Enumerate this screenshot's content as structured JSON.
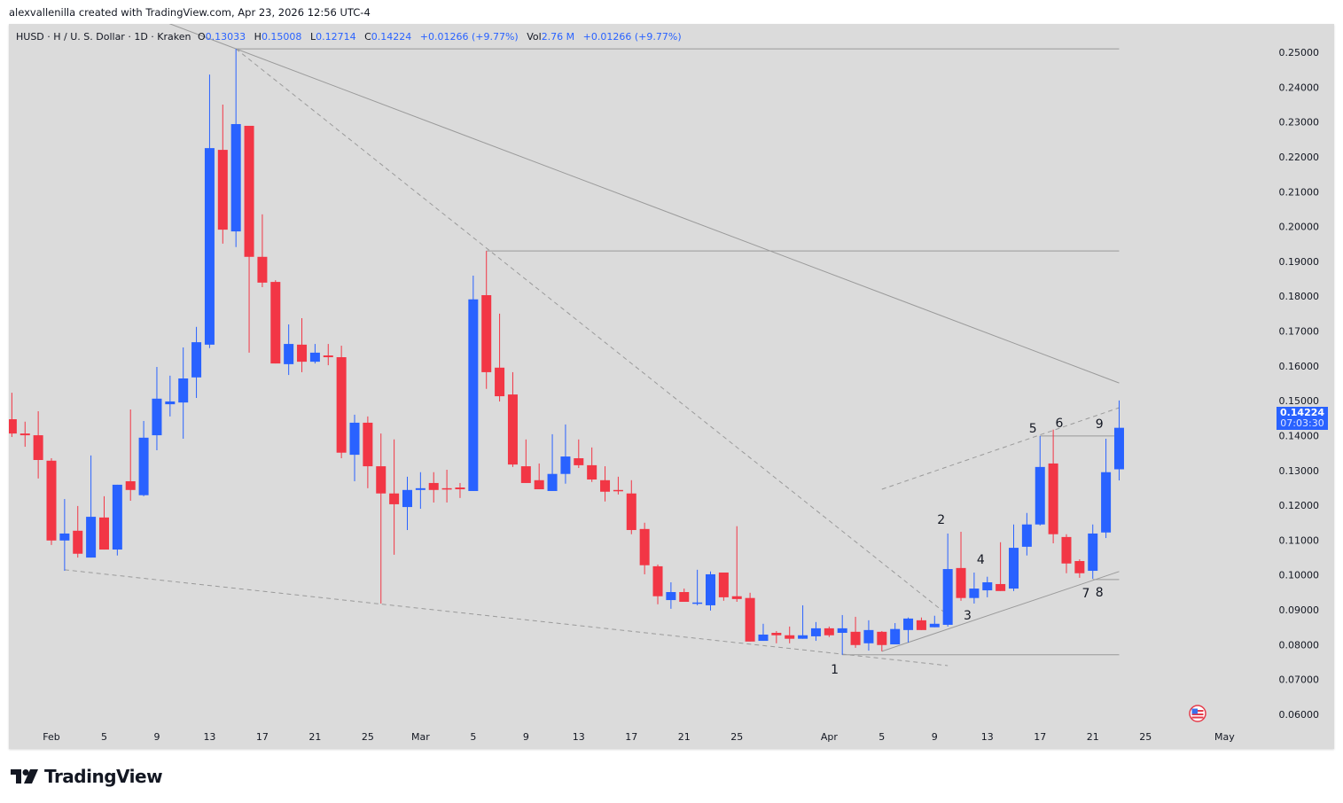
{
  "credit": "alexvallenilla created with TradingView.com, Apr 23, 2026 12:56 UTC-4",
  "legend": {
    "symbol": "HUSD · H / U. S. Dollar · 1D · Kraken",
    "o_label": "O",
    "o": "0.13033",
    "h_label": "H",
    "h": "0.15008",
    "l_label": "L",
    "l": "0.12714",
    "c_label": "C",
    "c": "0.14224",
    "change": "+0.01266 (+9.77%)",
    "vol_label": "Vol",
    "vol": "2.76 M",
    "vol_change": "+0.01266 (+9.77%)"
  },
  "last_price": {
    "price": "0.14224",
    "countdown": "07:03:30"
  },
  "logo": {
    "text": "TradingView"
  },
  "icons": {
    "flag": "us-flag-icon",
    "logo": "tradingview-logo-icon"
  },
  "colors": {
    "up": "#2962ff",
    "down": "#f23645",
    "background": "#dbdbdb",
    "drawing": "#9a9a9a",
    "accent": "#2962ff"
  },
  "chart_data": {
    "type": "candlestick",
    "title": "",
    "symbol": "HUSD",
    "interval": "1D",
    "exchange": "Kraken",
    "xlabel": "",
    "ylabel": "",
    "ylim": [
      0.055,
      0.2585
    ],
    "xlim": [
      "2026-01-28",
      "2026-05-05"
    ],
    "grid": false,
    "price_ticks": [
      "0.25000",
      "0.24000",
      "0.23000",
      "0.22000",
      "0.21000",
      "0.20000",
      "0.19000",
      "0.18000",
      "0.17000",
      "0.16000",
      "0.15000",
      "0.14000",
      "0.13000",
      "0.12000",
      "0.11000",
      "0.10000",
      "0.09000",
      "0.08000",
      "0.07000",
      "0.06000"
    ],
    "x_ticks": [
      {
        "date": "2026-02-01",
        "label": "Feb"
      },
      {
        "date": "2026-02-05",
        "label": "5"
      },
      {
        "date": "2026-02-09",
        "label": "9"
      },
      {
        "date": "2026-02-13",
        "label": "13"
      },
      {
        "date": "2026-02-17",
        "label": "17"
      },
      {
        "date": "2026-02-21",
        "label": "21"
      },
      {
        "date": "2026-02-25",
        "label": "25"
      },
      {
        "date": "2026-03-01",
        "label": "Mar"
      },
      {
        "date": "2026-03-05",
        "label": "5"
      },
      {
        "date": "2026-03-09",
        "label": "9"
      },
      {
        "date": "2026-03-13",
        "label": "13"
      },
      {
        "date": "2026-03-17",
        "label": "17"
      },
      {
        "date": "2026-03-21",
        "label": "21"
      },
      {
        "date": "2026-03-25",
        "label": "25"
      },
      {
        "date": "2026-04-01",
        "label": "Apr"
      },
      {
        "date": "2026-04-05",
        "label": "5"
      },
      {
        "date": "2026-04-09",
        "label": "9"
      },
      {
        "date": "2026-04-13",
        "label": "13"
      },
      {
        "date": "2026-04-17",
        "label": "17"
      },
      {
        "date": "2026-04-21",
        "label": "21"
      },
      {
        "date": "2026-04-25",
        "label": "25"
      },
      {
        "date": "2026-05-01",
        "label": "May"
      }
    ],
    "columns": [
      "date",
      "open",
      "high",
      "low",
      "close"
    ],
    "candles": [
      [
        "2026-01-29",
        0.1447,
        0.1523,
        0.1396,
        0.1406
      ],
      [
        "2026-01-30",
        0.1406,
        0.144,
        0.1368,
        0.1401
      ],
      [
        "2026-01-31",
        0.1401,
        0.147,
        0.1277,
        0.133
      ],
      [
        "2026-02-01",
        0.1328,
        0.1335,
        0.1086,
        0.1099
      ],
      [
        "2026-02-02",
        0.1099,
        0.1218,
        0.1012,
        0.1119
      ],
      [
        "2026-02-03",
        0.1127,
        0.1198,
        0.105,
        0.1061
      ],
      [
        "2026-02-04",
        0.105,
        0.1343,
        0.105,
        0.1167
      ],
      [
        "2026-02-05",
        0.1165,
        0.1226,
        0.1073,
        0.1073
      ],
      [
        "2026-02-06",
        0.1073,
        0.1259,
        0.1056,
        0.1259
      ],
      [
        "2026-02-07",
        0.1269,
        0.1475,
        0.1213,
        0.1244
      ],
      [
        "2026-02-08",
        0.1229,
        0.1442,
        0.1226,
        0.1394
      ],
      [
        "2026-02-09",
        0.1401,
        0.1597,
        0.1358,
        0.1506
      ],
      [
        "2026-02-10",
        0.149,
        0.1572,
        0.1455,
        0.1498
      ],
      [
        "2026-02-11",
        0.1495,
        0.1653,
        0.1391,
        0.1564
      ],
      [
        "2026-02-12",
        0.1567,
        0.1712,
        0.1508,
        0.1668
      ],
      [
        "2026-02-13",
        0.1661,
        0.2436,
        0.1651,
        0.2225
      ],
      [
        "2026-02-14",
        0.222,
        0.235,
        0.1951,
        0.1991
      ],
      [
        "2026-02-15",
        0.1986,
        0.251,
        0.1941,
        0.2294
      ],
      [
        "2026-02-16",
        0.2289,
        0.2289,
        0.1638,
        0.1913
      ],
      [
        "2026-02-17",
        0.1913,
        0.2035,
        0.1826,
        0.1839
      ],
      [
        "2026-02-18",
        0.1841,
        0.1846,
        0.1607,
        0.1607
      ],
      [
        "2026-02-19",
        0.1605,
        0.1719,
        0.1574,
        0.1663
      ],
      [
        "2026-02-20",
        0.1661,
        0.1737,
        0.1582,
        0.1612
      ],
      [
        "2026-02-21",
        0.1612,
        0.1663,
        0.1607,
        0.1638
      ],
      [
        "2026-02-22",
        0.163,
        0.1663,
        0.1602,
        0.1625
      ],
      [
        "2026-02-23",
        0.1625,
        0.1658,
        0.1335,
        0.1351
      ],
      [
        "2026-02-24",
        0.1345,
        0.146,
        0.1269,
        0.1437
      ],
      [
        "2026-02-25",
        0.1437,
        0.1455,
        0.1249,
        0.1312
      ],
      [
        "2026-02-26",
        0.1312,
        0.1406,
        0.0918,
        0.1234
      ],
      [
        "2026-02-27",
        0.1234,
        0.1389,
        0.1058,
        0.1203
      ],
      [
        "2026-02-28",
        0.1195,
        0.1282,
        0.1129,
        0.1244
      ],
      [
        "2026-03-01",
        0.1244,
        0.1295,
        0.119,
        0.1249
      ],
      [
        "2026-03-02",
        0.1264,
        0.1295,
        0.1208,
        0.1244
      ],
      [
        "2026-03-03",
        0.1249,
        0.1302,
        0.1208,
        0.1246
      ],
      [
        "2026-03-04",
        0.1251,
        0.1264,
        0.1221,
        0.1246
      ],
      [
        "2026-03-05",
        0.1241,
        0.1859,
        0.1241,
        0.1791
      ],
      [
        "2026-03-06",
        0.1803,
        0.193,
        0.1534,
        0.1582
      ],
      [
        "2026-03-07",
        0.1595,
        0.175,
        0.1498,
        0.1513
      ],
      [
        "2026-03-08",
        0.1518,
        0.1582,
        0.131,
        0.1317
      ],
      [
        "2026-03-09",
        0.1312,
        0.1389,
        0.1264,
        0.1264
      ],
      [
        "2026-03-10",
        0.1272,
        0.132,
        0.1246,
        0.1246
      ],
      [
        "2026-03-11",
        0.1241,
        0.1404,
        0.1241,
        0.129
      ],
      [
        "2026-03-12",
        0.129,
        0.1432,
        0.1262,
        0.134
      ],
      [
        "2026-03-13",
        0.1335,
        0.1389,
        0.1307,
        0.1315
      ],
      [
        "2026-03-14",
        0.1315,
        0.1366,
        0.1267,
        0.1274
      ],
      [
        "2026-03-15",
        0.1272,
        0.1312,
        0.1211,
        0.1239
      ],
      [
        "2026-03-16",
        0.1244,
        0.1282,
        0.1231,
        0.1241
      ],
      [
        "2026-03-17",
        0.1234,
        0.1272,
        0.1117,
        0.1129
      ],
      [
        "2026-03-18",
        0.1132,
        0.115,
        0.1002,
        0.1028
      ],
      [
        "2026-03-19",
        0.1025,
        0.103,
        0.0916,
        0.0939
      ],
      [
        "2026-03-20",
        0.0928,
        0.0979,
        0.0903,
        0.0951
      ],
      [
        "2026-03-21",
        0.0951,
        0.0961,
        0.0923,
        0.0923
      ],
      [
        "2026-03-22",
        0.0918,
        0.1015,
        0.0913,
        0.0921
      ],
      [
        "2026-03-23",
        0.0913,
        0.101,
        0.0898,
        0.1002
      ],
      [
        "2026-03-24",
        0.1007,
        0.1007,
        0.0926,
        0.0936
      ],
      [
        "2026-03-25",
        0.0939,
        0.114,
        0.0923,
        0.0931
      ],
      [
        "2026-03-26",
        0.0934,
        0.0949,
        0.0809,
        0.0809
      ],
      [
        "2026-03-27",
        0.0811,
        0.086,
        0.0811,
        0.0829
      ],
      [
        "2026-03-28",
        0.0834,
        0.0839,
        0.0804,
        0.0827
      ],
      [
        "2026-03-29",
        0.0827,
        0.0852,
        0.0804,
        0.0817
      ],
      [
        "2026-03-30",
        0.0817,
        0.0913,
        0.0817,
        0.0827
      ],
      [
        "2026-03-31",
        0.0824,
        0.0865,
        0.0811,
        0.0847
      ],
      [
        "2026-04-01",
        0.0847,
        0.0852,
        0.0822,
        0.0827
      ],
      [
        "2026-04-02",
        0.0834,
        0.0885,
        0.0771,
        0.0847
      ],
      [
        "2026-04-03",
        0.0837,
        0.088,
        0.0791,
        0.0799
      ],
      [
        "2026-04-04",
        0.0804,
        0.087,
        0.0783,
        0.0842
      ],
      [
        "2026-04-05",
        0.0837,
        0.0839,
        0.0781,
        0.0799
      ],
      [
        "2026-04-06",
        0.0801,
        0.0862,
        0.0801,
        0.0845
      ],
      [
        "2026-04-07",
        0.0842,
        0.0878,
        0.0806,
        0.0875
      ],
      [
        "2026-04-08",
        0.087,
        0.0878,
        0.0842,
        0.0842
      ],
      [
        "2026-04-09",
        0.085,
        0.0883,
        0.085,
        0.086
      ],
      [
        "2026-04-10",
        0.0857,
        0.1119,
        0.0852,
        0.1017
      ],
      [
        "2026-04-11",
        0.102,
        0.1124,
        0.0926,
        0.0934
      ],
      [
        "2026-04-12",
        0.0934,
        0.1007,
        0.0918,
        0.0961
      ],
      [
        "2026-04-13",
        0.0956,
        0.0995,
        0.0936,
        0.0979
      ],
      [
        "2026-04-14",
        0.0974,
        0.1094,
        0.0954,
        0.0954
      ],
      [
        "2026-04-15",
        0.0961,
        0.1145,
        0.0954,
        0.1078
      ],
      [
        "2026-04-16",
        0.1081,
        0.1178,
        0.1056,
        0.1145
      ],
      [
        "2026-04-17",
        0.1145,
        0.1399,
        0.1142,
        0.131
      ],
      [
        "2026-04-18",
        0.132,
        0.1417,
        0.1091,
        0.1117
      ],
      [
        "2026-04-19",
        0.1109,
        0.1117,
        0.1005,
        0.1033
      ],
      [
        "2026-04-20",
        0.104,
        0.1045,
        0.0992,
        0.1005
      ],
      [
        "2026-04-21",
        0.1012,
        0.1145,
        0.0989,
        0.1119
      ],
      [
        "2026-04-22",
        0.1122,
        0.1391,
        0.1106,
        0.1295
      ],
      [
        "2026-04-23",
        0.13033,
        0.15008,
        0.12714,
        0.14224
      ]
    ],
    "drawings": [
      {
        "style": "solid",
        "from": [
          "2026-02-15",
          0.251
        ],
        "to": [
          "2026-04-23",
          0.1551
        ],
        "extend_left": true
      },
      {
        "style": "solid",
        "from": [
          "2026-02-15",
          0.251
        ],
        "to": [
          "2026-04-23",
          0.251
        ]
      },
      {
        "style": "dashed",
        "from": [
          "2026-02-15",
          0.251
        ],
        "to": [
          "2026-04-09T16:00",
          0.0895
        ]
      },
      {
        "style": "solid",
        "from": [
          "2026-03-06",
          0.193
        ],
        "to": [
          "2026-04-23",
          0.193
        ]
      },
      {
        "style": "dashed",
        "from": [
          "2026-02-02",
          0.1015
        ],
        "to": [
          "2026-04-10",
          0.074
        ]
      },
      {
        "style": "solid",
        "from": [
          "2026-04-02",
          0.0771
        ],
        "to": [
          "2026-04-23",
          0.0771
        ]
      },
      {
        "style": "solid",
        "from": [
          "2026-04-05",
          0.0781
        ],
        "to": [
          "2026-04-23",
          0.101
        ]
      },
      {
        "style": "dashed",
        "from": [
          "2026-04-05",
          0.1246
        ],
        "to": [
          "2026-04-23",
          0.148
        ]
      },
      {
        "style": "solid",
        "from": [
          "2026-04-17",
          0.1399
        ],
        "to": [
          "2026-04-23",
          0.1399
        ]
      },
      {
        "style": "solid",
        "from": [
          "2026-04-21",
          0.0987
        ],
        "to": [
          "2026-04-23",
          0.0987
        ]
      }
    ],
    "annotations": [
      {
        "text": "1",
        "date": "2026-04-01T10:00",
        "price": 0.073
      },
      {
        "text": "2",
        "date": "2026-04-09T12:00",
        "price": 0.116
      },
      {
        "text": "3",
        "date": "2026-04-11T12:00",
        "price": 0.0885
      },
      {
        "text": "4",
        "date": "2026-04-12T12:00",
        "price": 0.1045
      },
      {
        "text": "5",
        "date": "2026-04-16T11:00",
        "price": 0.1422
      },
      {
        "text": "6",
        "date": "2026-04-18T11:00",
        "price": 0.1437
      },
      {
        "text": "7",
        "date": "2026-04-20T11:30",
        "price": 0.0949
      },
      {
        "text": "8",
        "date": "2026-04-21T12:00",
        "price": 0.0951
      },
      {
        "text": "9",
        "date": "2026-04-21T12:00",
        "price": 0.1434
      }
    ]
  }
}
